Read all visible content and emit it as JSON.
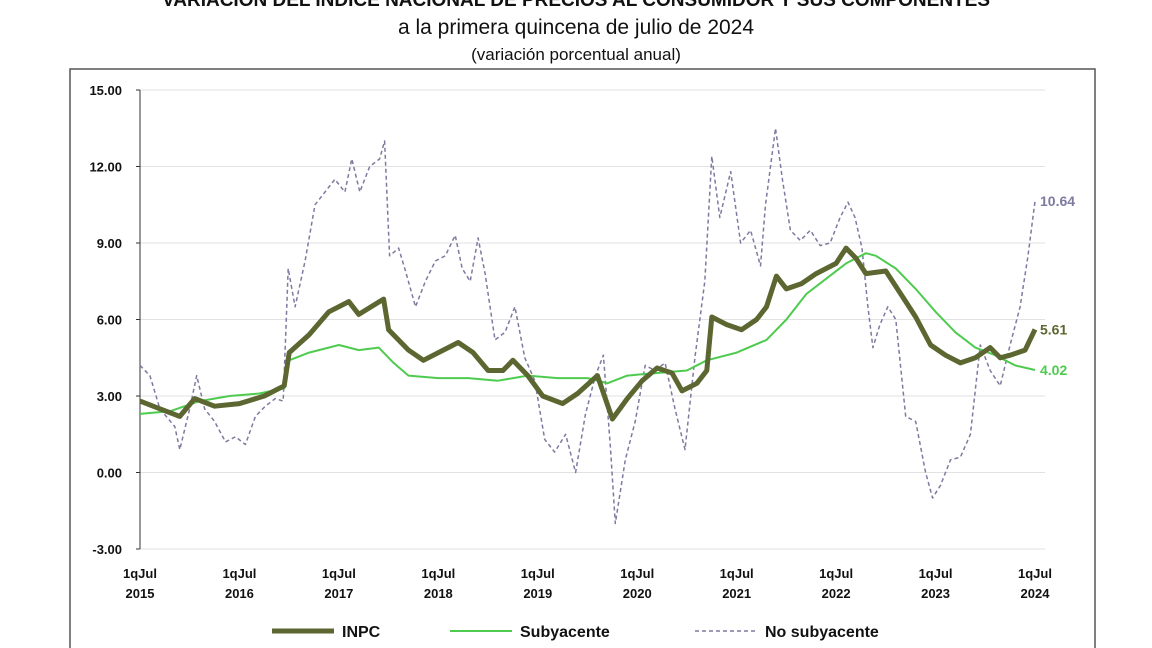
{
  "chart_data": {
    "type": "line",
    "title": "VARIACIÓN DEL ÍNDICE NACIONAL DE PRECIOS AL CONSUMIDOR Y SUS COMPONENTES",
    "subtitle": "a la primera quincena de julio de 2024",
    "subtitle2": "(variación porcentual anual)",
    "xlabel": "",
    "ylabel": "",
    "ylim": [
      -3,
      15
    ],
    "xlim": [
      2015.5,
      2024.5
    ],
    "yticks": [
      "15.00",
      "12.00",
      "9.00",
      "6.00",
      "3.00",
      "0.00",
      "-3.00"
    ],
    "ytick_values": [
      15,
      12,
      9,
      6,
      3,
      0,
      -3
    ],
    "xticks": [
      {
        "x": 2015.5,
        "l1": "1qJul",
        "l2": "2015"
      },
      {
        "x": 2016.5,
        "l1": "1qJul",
        "l2": "2016"
      },
      {
        "x": 2017.5,
        "l1": "1qJul",
        "l2": "2017"
      },
      {
        "x": 2018.5,
        "l1": "1qJul",
        "l2": "2018"
      },
      {
        "x": 2019.5,
        "l1": "1qJul",
        "l2": "2019"
      },
      {
        "x": 2020.5,
        "l1": "1qJul",
        "l2": "2020"
      },
      {
        "x": 2021.5,
        "l1": "1qJul",
        "l2": "2021"
      },
      {
        "x": 2022.5,
        "l1": "1qJul",
        "l2": "2022"
      },
      {
        "x": 2023.5,
        "l1": "1qJul",
        "l2": "2023"
      },
      {
        "x": 2024.5,
        "l1": "1qJul",
        "l2": "2024"
      }
    ],
    "grid": true,
    "legend": "bottom",
    "series": [
      {
        "name": "INPC",
        "color": "#5b6630",
        "style": "thick",
        "end_label": "5.61",
        "points": [
          [
            2015.5,
            2.8
          ],
          [
            2015.7,
            2.5
          ],
          [
            2015.9,
            2.2
          ],
          [
            2016.05,
            2.9
          ],
          [
            2016.25,
            2.6
          ],
          [
            2016.5,
            2.7
          ],
          [
            2016.75,
            3.0
          ],
          [
            2016.95,
            3.4
          ],
          [
            2017.0,
            4.7
          ],
          [
            2017.2,
            5.4
          ],
          [
            2017.4,
            6.3
          ],
          [
            2017.6,
            6.7
          ],
          [
            2017.7,
            6.2
          ],
          [
            2017.95,
            6.8
          ],
          [
            2018.0,
            5.6
          ],
          [
            2018.2,
            4.8
          ],
          [
            2018.35,
            4.4
          ],
          [
            2018.55,
            4.8
          ],
          [
            2018.7,
            5.1
          ],
          [
            2018.85,
            4.7
          ],
          [
            2019.0,
            4.0
          ],
          [
            2019.15,
            4.0
          ],
          [
            2019.25,
            4.4
          ],
          [
            2019.4,
            3.8
          ],
          [
            2019.55,
            3.0
          ],
          [
            2019.75,
            2.7
          ],
          [
            2019.9,
            3.1
          ],
          [
            2020.1,
            3.8
          ],
          [
            2020.25,
            2.1
          ],
          [
            2020.4,
            2.9
          ],
          [
            2020.55,
            3.6
          ],
          [
            2020.7,
            4.1
          ],
          [
            2020.85,
            3.9
          ],
          [
            2020.95,
            3.2
          ],
          [
            2021.1,
            3.5
          ],
          [
            2021.2,
            4.0
          ],
          [
            2021.25,
            6.1
          ],
          [
            2021.4,
            5.8
          ],
          [
            2021.55,
            5.6
          ],
          [
            2021.7,
            6.0
          ],
          [
            2021.8,
            6.5
          ],
          [
            2021.9,
            7.7
          ],
          [
            2022.0,
            7.2
          ],
          [
            2022.15,
            7.4
          ],
          [
            2022.3,
            7.8
          ],
          [
            2022.5,
            8.2
          ],
          [
            2022.6,
            8.8
          ],
          [
            2022.7,
            8.4
          ],
          [
            2022.8,
            7.8
          ],
          [
            2023.0,
            7.9
          ],
          [
            2023.15,
            7.0
          ],
          [
            2023.3,
            6.1
          ],
          [
            2023.45,
            5.0
          ],
          [
            2023.6,
            4.6
          ],
          [
            2023.75,
            4.3
          ],
          [
            2023.9,
            4.5
          ],
          [
            2024.05,
            4.9
          ],
          [
            2024.15,
            4.5
          ],
          [
            2024.25,
            4.6
          ],
          [
            2024.4,
            4.8
          ],
          [
            2024.5,
            5.61
          ]
        ]
      },
      {
        "name": "Subyacente",
        "color": "#4ecb4e",
        "style": "solid",
        "end_label": "4.02",
        "points": [
          [
            2015.5,
            2.3
          ],
          [
            2015.8,
            2.4
          ],
          [
            2016.1,
            2.8
          ],
          [
            2016.4,
            3.0
          ],
          [
            2016.7,
            3.1
          ],
          [
            2016.95,
            3.3
          ],
          [
            2017.0,
            4.4
          ],
          [
            2017.2,
            4.7
          ],
          [
            2017.5,
            5.0
          ],
          [
            2017.7,
            4.8
          ],
          [
            2017.9,
            4.9
          ],
          [
            2018.05,
            4.3
          ],
          [
            2018.2,
            3.8
          ],
          [
            2018.5,
            3.7
          ],
          [
            2018.8,
            3.7
          ],
          [
            2019.1,
            3.6
          ],
          [
            2019.4,
            3.8
          ],
          [
            2019.7,
            3.7
          ],
          [
            2020.0,
            3.7
          ],
          [
            2020.2,
            3.5
          ],
          [
            2020.4,
            3.8
          ],
          [
            2020.7,
            3.9
          ],
          [
            2021.0,
            4.0
          ],
          [
            2021.2,
            4.4
          ],
          [
            2021.5,
            4.7
          ],
          [
            2021.8,
            5.2
          ],
          [
            2022.0,
            6.0
          ],
          [
            2022.2,
            7.0
          ],
          [
            2022.4,
            7.6
          ],
          [
            2022.6,
            8.2
          ],
          [
            2022.8,
            8.6
          ],
          [
            2022.9,
            8.5
          ],
          [
            2023.1,
            8.0
          ],
          [
            2023.3,
            7.2
          ],
          [
            2023.5,
            6.3
          ],
          [
            2023.7,
            5.5
          ],
          [
            2023.9,
            4.9
          ],
          [
            2024.1,
            4.6
          ],
          [
            2024.3,
            4.2
          ],
          [
            2024.5,
            4.02
          ]
        ]
      },
      {
        "name": "No subyacente",
        "color": "#7d7aa0",
        "style": "dashed",
        "end_label": "10.64",
        "points": [
          [
            2015.5,
            4.2
          ],
          [
            2015.6,
            3.8
          ],
          [
            2015.7,
            2.5
          ],
          [
            2015.85,
            1.8
          ],
          [
            2015.9,
            0.9
          ],
          [
            2016.0,
            2.5
          ],
          [
            2016.07,
            3.8
          ],
          [
            2016.15,
            2.5
          ],
          [
            2016.25,
            2.0
          ],
          [
            2016.36,
            1.2
          ],
          [
            2016.46,
            1.4
          ],
          [
            2016.56,
            1.1
          ],
          [
            2016.66,
            2.2
          ],
          [
            2016.76,
            2.6
          ],
          [
            2016.86,
            2.9
          ],
          [
            2016.94,
            2.8
          ],
          [
            2016.99,
            8.0
          ],
          [
            2017.06,
            6.5
          ],
          [
            2017.16,
            8.3
          ],
          [
            2017.26,
            10.5
          ],
          [
            2017.36,
            11.0
          ],
          [
            2017.46,
            11.5
          ],
          [
            2017.56,
            11.0
          ],
          [
            2017.63,
            12.3
          ],
          [
            2017.71,
            11.0
          ],
          [
            2017.81,
            12.0
          ],
          [
            2017.91,
            12.3
          ],
          [
            2017.96,
            13.0
          ],
          [
            2018.01,
            8.5
          ],
          [
            2018.1,
            8.8
          ],
          [
            2018.17,
            7.9
          ],
          [
            2018.27,
            6.5
          ],
          [
            2018.37,
            7.5
          ],
          [
            2018.47,
            8.3
          ],
          [
            2018.57,
            8.5
          ],
          [
            2018.67,
            9.3
          ],
          [
            2018.74,
            8.0
          ],
          [
            2018.82,
            7.5
          ],
          [
            2018.9,
            9.2
          ],
          [
            2018.97,
            7.8
          ],
          [
            2019.07,
            5.2
          ],
          [
            2019.17,
            5.5
          ],
          [
            2019.27,
            6.5
          ],
          [
            2019.37,
            4.5
          ],
          [
            2019.47,
            3.6
          ],
          [
            2019.57,
            1.3
          ],
          [
            2019.67,
            0.8
          ],
          [
            2019.78,
            1.5
          ],
          [
            2019.88,
            0.0
          ],
          [
            2019.98,
            2.3
          ],
          [
            2020.08,
            3.8
          ],
          [
            2020.16,
            4.6
          ],
          [
            2020.23,
            1.0
          ],
          [
            2020.28,
            -2.0
          ],
          [
            2020.38,
            0.5
          ],
          [
            2020.48,
            2.0
          ],
          [
            2020.58,
            4.2
          ],
          [
            2020.68,
            4.0
          ],
          [
            2020.78,
            4.3
          ],
          [
            2020.88,
            2.5
          ],
          [
            2020.98,
            0.9
          ],
          [
            2021.08,
            4.5
          ],
          [
            2021.18,
            7.5
          ],
          [
            2021.25,
            12.4
          ],
          [
            2021.33,
            10.0
          ],
          [
            2021.44,
            11.8
          ],
          [
            2021.54,
            9.0
          ],
          [
            2021.64,
            9.5
          ],
          [
            2021.74,
            8.1
          ],
          [
            2021.79,
            10.5
          ],
          [
            2021.89,
            13.5
          ],
          [
            2021.96,
            11.5
          ],
          [
            2022.04,
            9.5
          ],
          [
            2022.14,
            9.1
          ],
          [
            2022.24,
            9.5
          ],
          [
            2022.34,
            8.9
          ],
          [
            2022.44,
            9.0
          ],
          [
            2022.54,
            10.0
          ],
          [
            2022.62,
            10.6
          ],
          [
            2022.69,
            10.0
          ],
          [
            2022.76,
            8.8
          ],
          [
            2022.82,
            6.5
          ],
          [
            2022.87,
            4.9
          ],
          [
            2022.94,
            5.8
          ],
          [
            2023.02,
            6.5
          ],
          [
            2023.1,
            6.0
          ],
          [
            2023.2,
            2.2
          ],
          [
            2023.3,
            2.0
          ],
          [
            2023.4,
            0.0
          ],
          [
            2023.47,
            -1.0
          ],
          [
            2023.55,
            -0.5
          ],
          [
            2023.65,
            0.5
          ],
          [
            2023.75,
            0.6
          ],
          [
            2023.85,
            1.5
          ],
          [
            2023.95,
            5.0
          ],
          [
            2024.05,
            4.0
          ],
          [
            2024.15,
            3.4
          ],
          [
            2024.25,
            5.0
          ],
          [
            2024.35,
            6.5
          ],
          [
            2024.43,
            8.5
          ],
          [
            2024.5,
            10.64
          ]
        ]
      }
    ]
  }
}
